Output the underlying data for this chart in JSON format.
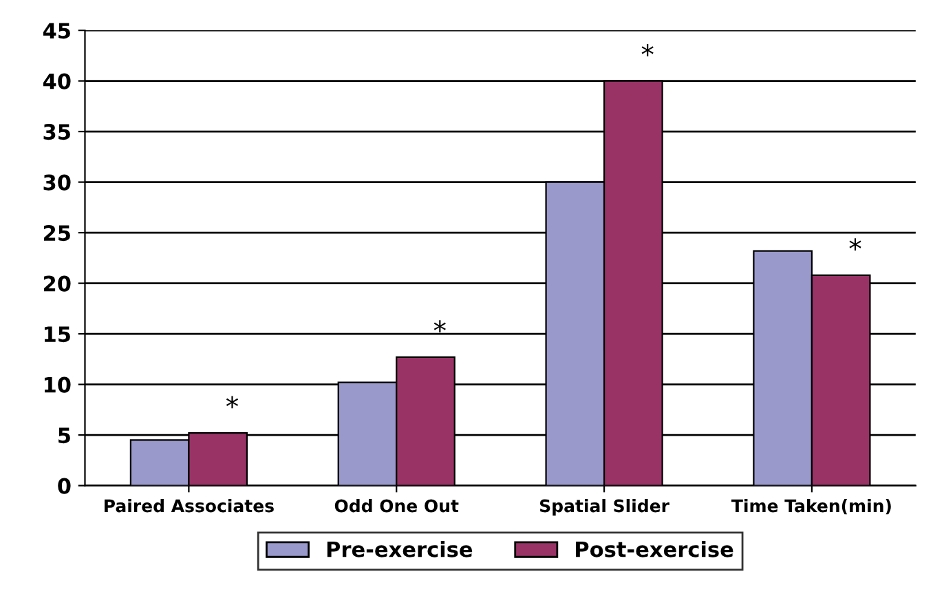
{
  "chart_data": {
    "type": "bar",
    "categories": [
      "Paired Associates",
      "Odd One Out",
      "Spatial Slider",
      "Time Taken(min)"
    ],
    "series": [
      {
        "name": "Pre-exercise",
        "color": "#9999cc",
        "values": [
          4.5,
          10.2,
          30,
          23.2
        ]
      },
      {
        "name": "Post-exercise",
        "color": "#993366",
        "values": [
          5.2,
          12.7,
          40,
          20.8
        ]
      }
    ],
    "ylim": [
      0,
      45
    ],
    "yticks": [
      0,
      5,
      10,
      15,
      20,
      25,
      30,
      35,
      40,
      45
    ],
    "grid": "y",
    "legend": "bottom",
    "annotations": [
      {
        "text": "*",
        "x": "Paired Associates",
        "y": 5.2
      },
      {
        "text": "*",
        "x": "Odd One Out",
        "y": 12.7
      },
      {
        "text": "*",
        "x": "Spatial Slider",
        "y": 40
      },
      {
        "text": "*",
        "x": "Time Taken(min)",
        "y": 20.8
      }
    ]
  }
}
